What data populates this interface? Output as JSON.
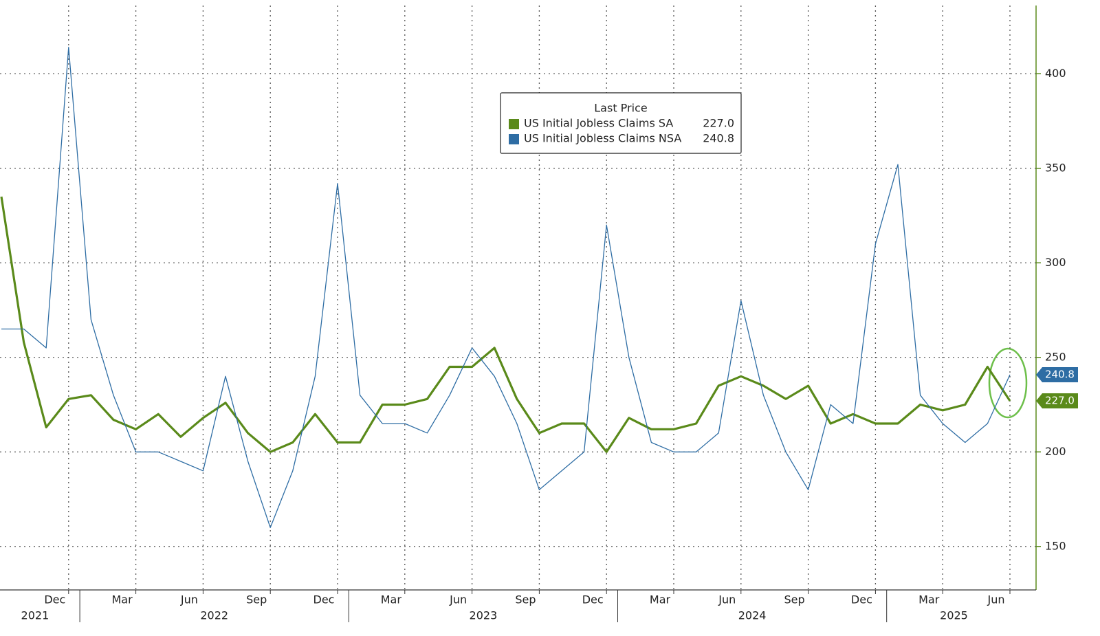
{
  "chart_data": {
    "type": "line",
    "legend_title": "Last Price",
    "x": [
      "2021-09",
      "2021-10",
      "2021-11",
      "2021-12",
      "2022-01",
      "2022-02",
      "2022-03",
      "2022-04",
      "2022-05",
      "2022-06",
      "2022-07",
      "2022-08",
      "2022-09",
      "2022-10",
      "2022-11",
      "2022-12",
      "2023-01",
      "2023-02",
      "2023-03",
      "2023-04",
      "2023-05",
      "2023-06",
      "2023-07",
      "2023-08",
      "2023-09",
      "2023-10",
      "2023-11",
      "2023-12",
      "2024-01",
      "2024-02",
      "2024-03",
      "2024-04",
      "2024-05",
      "2024-06",
      "2024-07",
      "2024-08",
      "2024-09",
      "2024-10",
      "2024-11",
      "2024-12",
      "2025-01",
      "2025-02",
      "2025-03",
      "2025-04",
      "2025-05",
      "2025-06"
    ],
    "series": [
      {
        "name": "US Initial Jobless Claims SA",
        "color": "#5a8a1a",
        "last_label": "227.0",
        "values": [
          335,
          258,
          213,
          228,
          230,
          217,
          212,
          220,
          208,
          218,
          226,
          210,
          200,
          205,
          220,
          205,
          205,
          225,
          225,
          228,
          245,
          245,
          255,
          228,
          210,
          215,
          215,
          200,
          218,
          212,
          212,
          215,
          235,
          240,
          235,
          228,
          235,
          215,
          220,
          215,
          215,
          225,
          222,
          225,
          245,
          227
        ]
      },
      {
        "name": "US Initial Jobless Claims NSA",
        "color": "#2e6da4",
        "last_label": "240.8",
        "values": [
          265,
          265,
          255,
          414,
          270,
          230,
          200,
          200,
          195,
          190,
          240,
          195,
          160,
          190,
          240,
          342,
          230,
          215,
          215,
          210,
          230,
          255,
          240,
          215,
          180,
          190,
          200,
          320,
          250,
          205,
          200,
          200,
          210,
          280,
          230,
          200,
          180,
          225,
          215,
          310,
          352,
          230,
          215,
          205,
          215,
          240.8
        ]
      }
    ],
    "ylim": [
      127,
      439
    ],
    "yticks": [
      150,
      200,
      250,
      300,
      350,
      400
    ],
    "xticks": [
      {
        "value": "2021-12",
        "label": "Dec"
      },
      {
        "value": "2022-03",
        "label": "Mar"
      },
      {
        "value": "2022-06",
        "label": "Jun"
      },
      {
        "value": "2022-09",
        "label": "Sep"
      },
      {
        "value": "2022-12",
        "label": "Dec"
      },
      {
        "value": "2023-03",
        "label": "Mar"
      },
      {
        "value": "2023-06",
        "label": "Jun"
      },
      {
        "value": "2023-09",
        "label": "Sep"
      },
      {
        "value": "2023-12",
        "label": "Dec"
      },
      {
        "value": "2024-03",
        "label": "Mar"
      },
      {
        "value": "2024-06",
        "label": "Jun"
      },
      {
        "value": "2024-09",
        "label": "Sep"
      },
      {
        "value": "2024-12",
        "label": "Dec"
      },
      {
        "value": "2025-03",
        "label": "Mar"
      },
      {
        "value": "2025-06",
        "label": "Jun"
      }
    ],
    "years": [
      2021,
      2022,
      2023,
      2024,
      2025
    ],
    "grid": true
  }
}
